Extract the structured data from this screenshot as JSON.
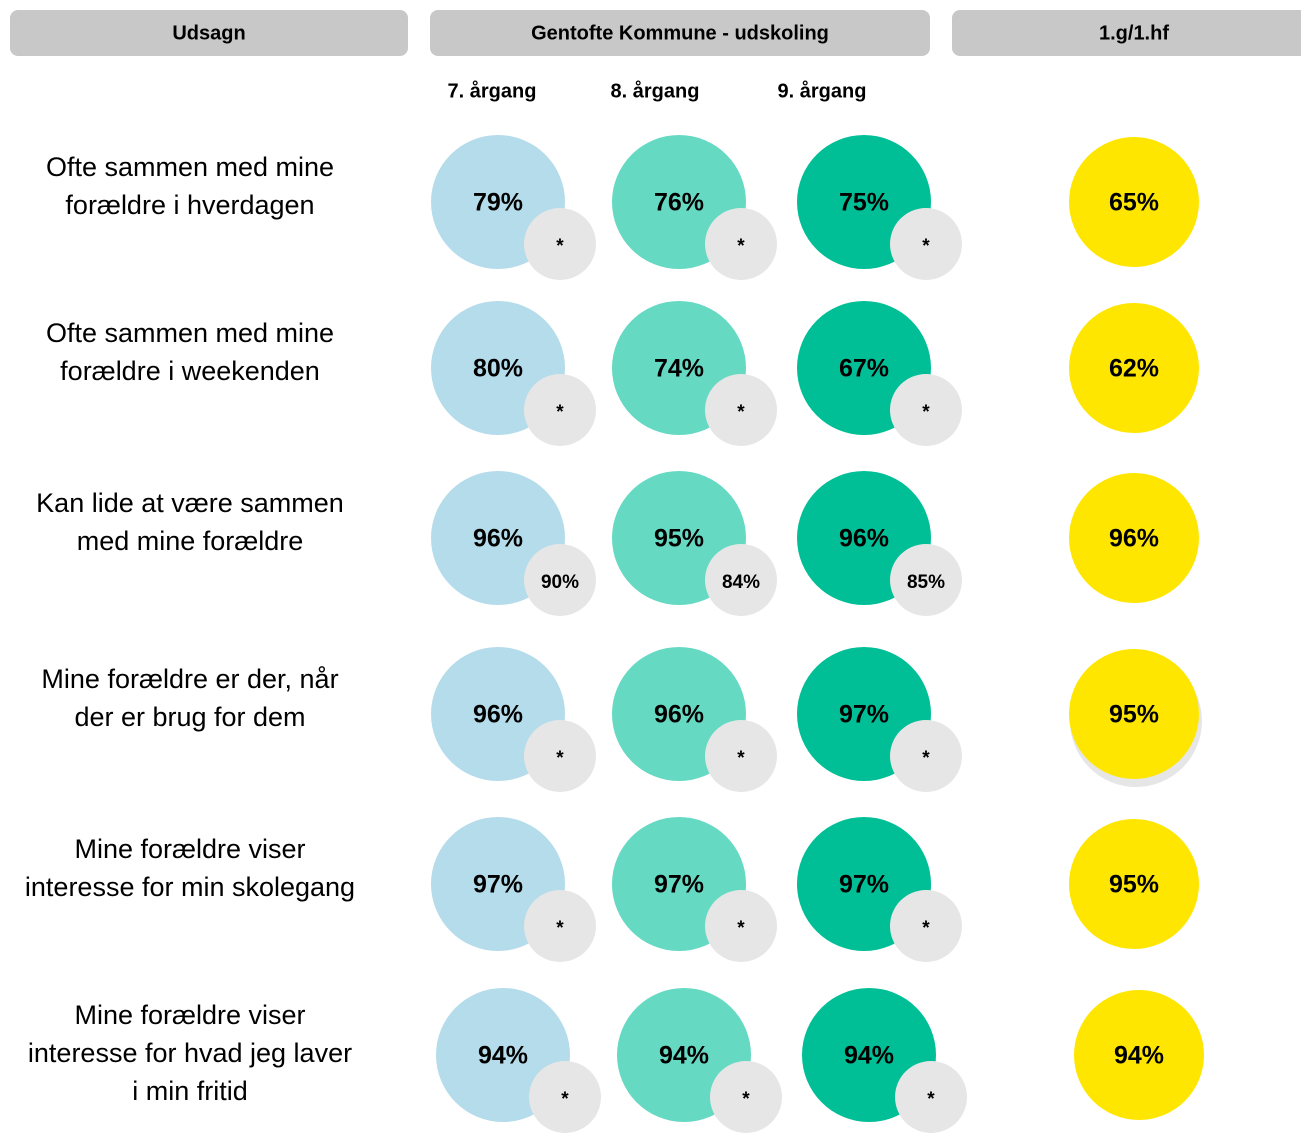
{
  "header": {
    "statement": "Udsagn",
    "group": "Gentofte Kommune - udskoling",
    "upper": "1.g/1.hf"
  },
  "grades": [
    "7. årgang",
    "8. årgang",
    "9. årgang"
  ],
  "rows": [
    {
      "label": [
        "Ofte sammen med mine",
        "forældre i hverdagen"
      ],
      "cells": [
        {
          "value": "79%",
          "compare": "*"
        },
        {
          "value": "76%",
          "compare": "*"
        },
        {
          "value": "75%",
          "compare": "*"
        }
      ],
      "upper": "65%"
    },
    {
      "label": [
        "Ofte sammen med mine",
        "forældre i weekenden"
      ],
      "cells": [
        {
          "value": "80%",
          "compare": "*"
        },
        {
          "value": "74%",
          "compare": "*"
        },
        {
          "value": "67%",
          "compare": "*"
        }
      ],
      "upper": "62%"
    },
    {
      "label": [
        "Kan lide at være sammen",
        "med mine forældre"
      ],
      "cells": [
        {
          "value": "96%",
          "compare": "90%"
        },
        {
          "value": "95%",
          "compare": "84%"
        },
        {
          "value": "96%",
          "compare": "85%"
        }
      ],
      "upper": "96%"
    },
    {
      "label": [
        "Mine forældre er der, når",
        "der er brug for dem"
      ],
      "cells": [
        {
          "value": "96%",
          "compare": "*"
        },
        {
          "value": "96%",
          "compare": "*"
        },
        {
          "value": "97%",
          "compare": "*"
        }
      ],
      "upper": "95%"
    },
    {
      "label": [
        "Mine forældre viser",
        "interesse for min skolegang"
      ],
      "cells": [
        {
          "value": "97%",
          "compare": "*"
        },
        {
          "value": "97%",
          "compare": "*"
        },
        {
          "value": "97%",
          "compare": "*"
        }
      ],
      "upper": "95%"
    },
    {
      "label": [
        "Mine forældre viser",
        "interesse for hvad jeg laver",
        "i min fritid"
      ],
      "cells": [
        {
          "value": "94%",
          "compare": "*"
        },
        {
          "value": "94%",
          "compare": "*"
        },
        {
          "value": "94%",
          "compare": "*"
        }
      ],
      "upper": "94%"
    }
  ]
}
